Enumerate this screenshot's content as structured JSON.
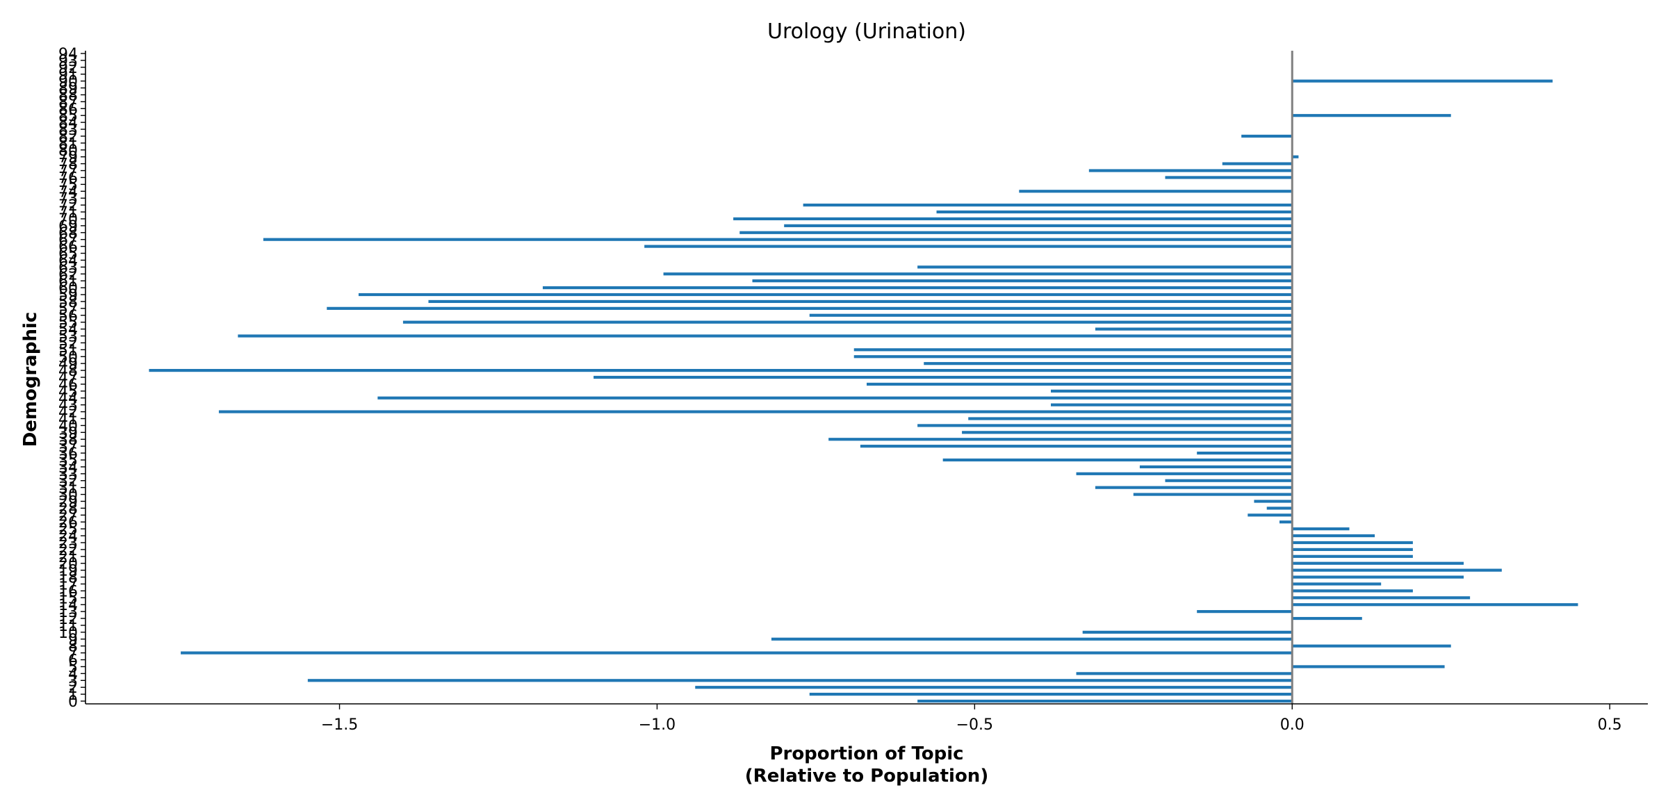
{
  "colors": {
    "bar": "#1f77b4",
    "zero_line": "#808080",
    "axis": "#000000"
  },
  "chart_data": {
    "type": "bar",
    "orientation": "horizontal",
    "title": "Urology (Urination)",
    "xlabel_lines": [
      "Proportion of Topic",
      "(Relative to Population)"
    ],
    "ylabel": "Demographic",
    "xlim": [
      -1.9,
      0.56
    ],
    "ylim": [
      -0.4,
      94.4
    ],
    "xticks": [
      -1.5,
      -1.0,
      -0.5,
      0.0,
      0.5
    ],
    "xtick_labels": [
      "−1.5",
      "−1.0",
      "−0.5",
      "0.0",
      "0.5"
    ],
    "grid": false,
    "legend": false,
    "categories": [
      "0",
      "1",
      "2",
      "3",
      "4",
      "5",
      "6",
      "7",
      "8",
      "9",
      "10",
      "11",
      "12",
      "13",
      "14",
      "15",
      "16",
      "17",
      "18",
      "19",
      "20",
      "21",
      "22",
      "23",
      "24",
      "25",
      "26",
      "27",
      "28",
      "29",
      "30",
      "31",
      "32",
      "33",
      "34",
      "35",
      "36",
      "37",
      "38",
      "39",
      "40",
      "41",
      "42",
      "43",
      "44",
      "45",
      "46",
      "47",
      "48",
      "49",
      "50",
      "51",
      "52",
      "53",
      "54",
      "55",
      "56",
      "57",
      "58",
      "59",
      "60",
      "61",
      "62",
      "63",
      "64",
      "65",
      "66",
      "67",
      "68",
      "69",
      "70",
      "71",
      "72",
      "73",
      "74",
      "75",
      "76",
      "77",
      "78",
      "79",
      "80",
      "81",
      "82",
      "83",
      "84",
      "85",
      "86",
      "87",
      "88",
      "89",
      "90",
      "91",
      "92",
      "93",
      "94"
    ],
    "values": [
      -0.59,
      -0.76,
      -0.94,
      -1.55,
      -0.34,
      0.24,
      0.0,
      -1.75,
      0.25,
      -0.82,
      -0.33,
      0.0,
      0.11,
      -0.15,
      0.45,
      0.28,
      0.19,
      0.14,
      0.27,
      0.33,
      0.27,
      0.19,
      0.19,
      0.19,
      0.13,
      0.09,
      -0.02,
      -0.07,
      -0.04,
      -0.06,
      -0.25,
      -0.31,
      -0.2,
      -0.34,
      -0.24,
      -0.55,
      -0.15,
      -0.68,
      -0.73,
      -0.52,
      -0.59,
      -0.51,
      -1.69,
      -0.38,
      -1.44,
      -0.38,
      -0.67,
      -1.1,
      -1.8,
      -0.58,
      -0.69,
      -0.69,
      0.0,
      -1.66,
      -0.31,
      -1.4,
      -0.76,
      -1.52,
      -1.36,
      -1.47,
      -1.18,
      -0.85,
      -0.99,
      -0.59,
      0.0,
      0.0,
      -1.02,
      -1.62,
      -0.87,
      -0.8,
      -0.88,
      -0.56,
      -0.77,
      0.0,
      -0.43,
      0.0,
      -0.2,
      -0.32,
      -0.11,
      0.01,
      0.0,
      0.0,
      -0.08,
      0.0,
      0.0,
      0.25,
      0.0,
      0.0,
      0.0,
      0.0,
      0.41,
      0.0,
      0.0,
      0.0,
      0.0
    ]
  }
}
